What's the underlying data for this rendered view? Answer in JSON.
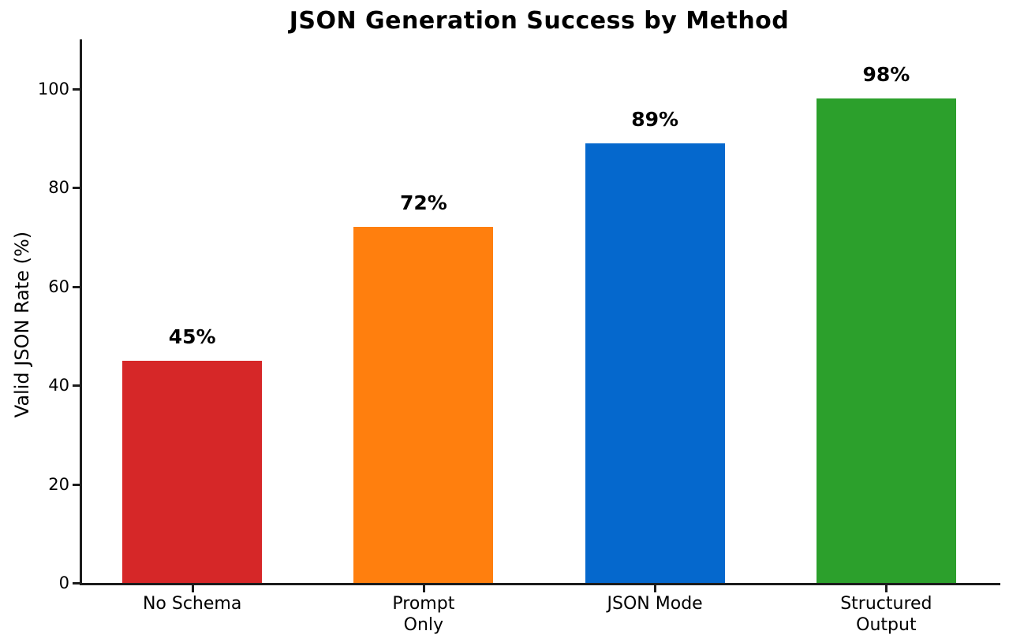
{
  "chart_data": {
    "type": "bar",
    "title": "JSON Generation Success by Method",
    "xlabel": "",
    "ylabel": "Valid JSON Rate (%)",
    "categories": [
      "No Schema",
      "Prompt\nOnly",
      "JSON Mode",
      "Structured\nOutput"
    ],
    "values": [
      45,
      72,
      89,
      98
    ],
    "value_labels": [
      "45%",
      "72%",
      "89%",
      "98%"
    ],
    "bar_colors": [
      "#d62728",
      "#ff7f0e",
      "#0568cd",
      "#2ca02c"
    ],
    "yticks": [
      0,
      20,
      40,
      60,
      80,
      100
    ],
    "ylim": [
      0,
      110
    ],
    "grid": false,
    "legend": null,
    "background_color": "#ffffff",
    "axis_color": "#1c1c1c",
    "text_color": "#000000"
  }
}
